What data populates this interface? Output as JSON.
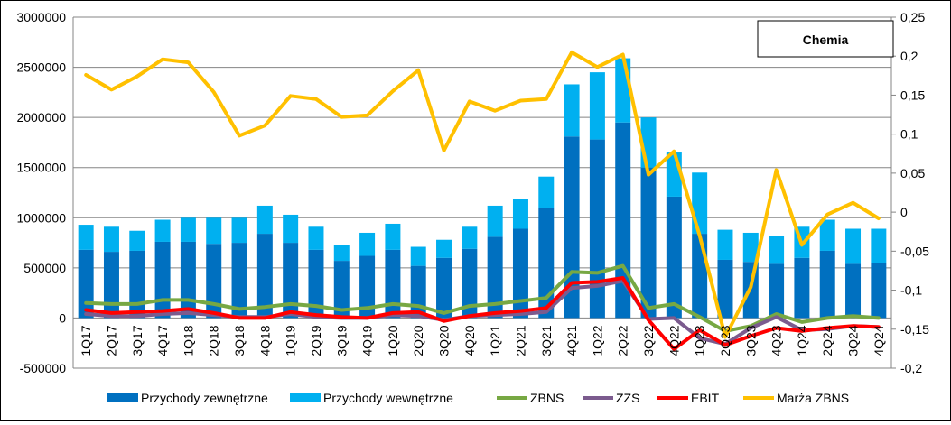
{
  "chart_data": {
    "type": "bar",
    "title": "Chemia",
    "categories": [
      "1Q17",
      "2Q17",
      "3Q17",
      "4Q17",
      "1Q18",
      "2Q18",
      "3Q18",
      "4Q18",
      "1Q19",
      "2Q19",
      "3Q19",
      "4Q19",
      "1Q20",
      "2Q20",
      "3Q20",
      "4Q20",
      "1Q21",
      "2Q21",
      "3Q21",
      "4Q21",
      "1Q22",
      "2Q22",
      "3Q22",
      "4Q22",
      "1Q23",
      "2Q23",
      "3Q23",
      "4Q23",
      "1Q24",
      "2Q24",
      "3Q24",
      "4Q24"
    ],
    "y_left": {
      "ylim": [
        -500000,
        3000000
      ],
      "ticks": [
        "-500000",
        "0",
        "500000",
        "1000000",
        "1500000",
        "2000000",
        "2500000",
        "3000000"
      ]
    },
    "y_right": {
      "ylim": [
        -0.2,
        0.25
      ],
      "ticks": [
        "-0,2",
        "-0,15",
        "-0,1",
        "-0,05",
        "0",
        "0,05",
        "0,1",
        "0,15",
        "0,2",
        "0,25"
      ]
    },
    "grid": true,
    "legend_position": "bottom",
    "series": [
      {
        "name": "Przychody zewnętrzne",
        "kind": "bar",
        "axis": "left",
        "color": "#0070C0",
        "values": [
          680000,
          660000,
          670000,
          760000,
          760000,
          740000,
          750000,
          840000,
          750000,
          680000,
          570000,
          620000,
          680000,
          520000,
          600000,
          690000,
          810000,
          890000,
          1100000,
          1810000,
          1780000,
          1950000,
          1500000,
          1210000,
          840000,
          580000,
          560000,
          540000,
          600000,
          670000,
          540000,
          550000
        ]
      },
      {
        "name": "Przychody wewnętrzne",
        "kind": "bar",
        "axis": "left",
        "color": "#00B0F0",
        "values": [
          250000,
          250000,
          200000,
          220000,
          240000,
          260000,
          250000,
          280000,
          280000,
          230000,
          160000,
          230000,
          260000,
          190000,
          180000,
          220000,
          310000,
          300000,
          310000,
          520000,
          670000,
          640000,
          500000,
          440000,
          610000,
          300000,
          290000,
          280000,
          310000,
          310000,
          350000,
          340000
        ]
      },
      {
        "name": "ZBNS",
        "kind": "line",
        "axis": "left",
        "color": "#77A843",
        "values": [
          150000,
          140000,
          140000,
          180000,
          180000,
          140000,
          90000,
          110000,
          140000,
          120000,
          80000,
          100000,
          140000,
          120000,
          50000,
          120000,
          140000,
          170000,
          200000,
          460000,
          450000,
          520000,
          100000,
          140000,
          10000,
          -130000,
          -80000,
          40000,
          -40000,
          0,
          20000,
          0
        ]
      },
      {
        "name": "ZZS",
        "kind": "line",
        "axis": "left",
        "color": "#7B5B8E",
        "values": [
          40000,
          20000,
          20000,
          40000,
          50000,
          30000,
          10000,
          10000,
          40000,
          10000,
          0,
          0,
          30000,
          20000,
          -20000,
          20000,
          30000,
          40000,
          60000,
          300000,
          320000,
          370000,
          -10000,
          0,
          -200000,
          -260000,
          -100000,
          10000,
          -120000,
          -110000,
          -80000,
          -90000
        ]
      },
      {
        "name": "EBIT",
        "kind": "line",
        "axis": "left",
        "color": "#FF0000",
        "values": [
          80000,
          50000,
          60000,
          70000,
          90000,
          50000,
          0,
          0,
          60000,
          30000,
          10000,
          0,
          50000,
          60000,
          -30000,
          20000,
          50000,
          70000,
          100000,
          350000,
          360000,
          400000,
          -20000,
          -310000,
          -120000,
          -270000,
          -180000,
          -100000,
          -130000,
          -100000,
          -80000,
          -90000
        ]
      },
      {
        "name": "Marża ZBNS",
        "kind": "line",
        "axis": "right",
        "color": "#FFC000",
        "values": [
          0.176,
          0.157,
          0.174,
          0.196,
          0.192,
          0.154,
          0.098,
          0.111,
          0.149,
          0.145,
          0.122,
          0.124,
          0.155,
          0.182,
          0.079,
          0.142,
          0.13,
          0.143,
          0.145,
          0.205,
          0.186,
          0.202,
          0.048,
          0.078,
          -0.03,
          -0.16,
          -0.096,
          0.054,
          -0.042,
          -0.003,
          0.012,
          -0.008
        ]
      }
    ]
  }
}
